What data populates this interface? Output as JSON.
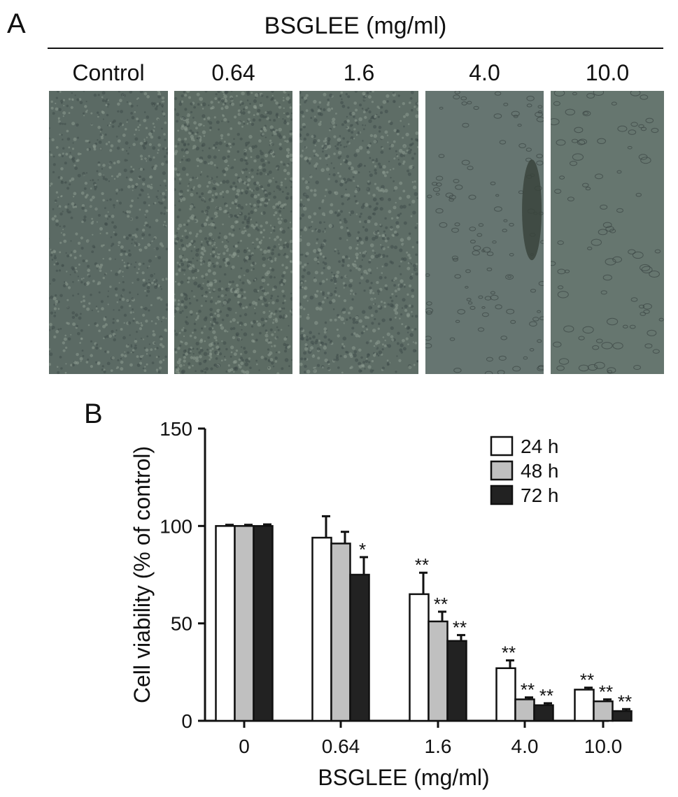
{
  "panel_a": {
    "letter": "A",
    "header": "BSGLEE (mg/ml)",
    "columns": [
      "Control",
      "0.64",
      "1.6",
      "4.0",
      "10.0"
    ]
  },
  "panel_b": {
    "letter": "B"
  },
  "chart_data": {
    "type": "bar",
    "title": "",
    "xlabel": "BSGLEE (mg/ml)",
    "ylabel": "Cell viability (% of control)",
    "categories": [
      "0",
      "0.64",
      "1.6",
      "4.0",
      "10.0"
    ],
    "ylim": [
      0,
      150
    ],
    "yticks": [
      "0",
      "50",
      "100",
      "150"
    ],
    "legend_position": "top-right",
    "grid": false,
    "series": [
      {
        "name": "24 h",
        "color": "#ffffff",
        "values": [
          100,
          94,
          65,
          27,
          16
        ],
        "errors": [
          0.6,
          11,
          11,
          4,
          1
        ],
        "annotations": [
          "",
          "",
          "**",
          "**",
          "**"
        ]
      },
      {
        "name": "48 h",
        "color": "#c0c0c0",
        "values": [
          100,
          91,
          51,
          11,
          10
        ],
        "errors": [
          0.6,
          6,
          5,
          1,
          1
        ],
        "annotations": [
          "",
          "",
          "**",
          "**",
          "**"
        ]
      },
      {
        "name": "72 h",
        "color": "#222222",
        "values": [
          100,
          75,
          41,
          8,
          5
        ],
        "errors": [
          0.8,
          9,
          3,
          1,
          1
        ],
        "annotations": [
          "",
          "*",
          "**",
          "**",
          "**"
        ]
      }
    ]
  }
}
